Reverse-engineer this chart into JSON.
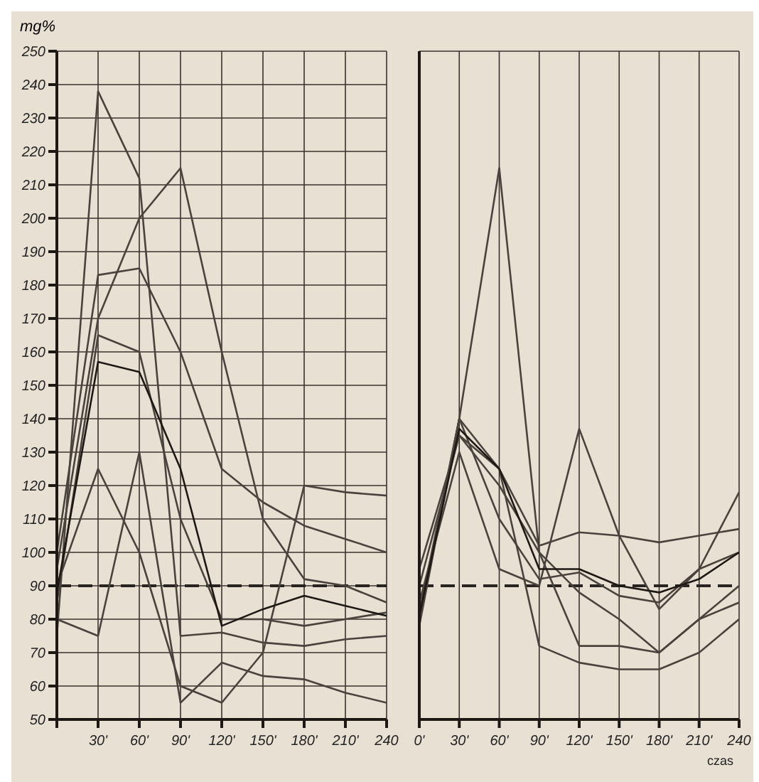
{
  "chart_data": [
    {
      "type": "line",
      "ylabel": "mg%",
      "x": [
        0,
        30,
        60,
        90,
        120,
        150,
        180,
        210,
        240
      ],
      "xlim": [
        0,
        240
      ],
      "xticks": [
        {
          "value": 0,
          "label": null
        },
        {
          "value": 30,
          "label": "30'"
        },
        {
          "value": 60,
          "label": "60'"
        },
        {
          "value": 90,
          "label": "90'"
        },
        {
          "value": 120,
          "label": "120'"
        },
        {
          "value": 150,
          "label": "150'"
        },
        {
          "value": 180,
          "label": "180'"
        },
        {
          "value": 210,
          "label": "210'"
        },
        {
          "value": 240,
          "label": "240"
        }
      ],
      "ylim": [
        50,
        250
      ],
      "yticks": [
        50,
        60,
        70,
        80,
        90,
        100,
        110,
        120,
        130,
        140,
        150,
        160,
        170,
        180,
        190,
        200,
        210,
        220,
        230,
        240,
        250
      ],
      "grid": true,
      "marker": "none",
      "ref_lines": [
        {
          "axis": "y",
          "value": 90,
          "color": "#2a2420",
          "line_style": "dashed"
        }
      ],
      "series": [
        {
          "color": "#4a423c",
          "values": [
            75,
            238,
            212,
            75,
            76,
            73,
            72,
            74,
            75
          ]
        },
        {
          "color": "#4a423c",
          "values": [
            95,
            170,
            200,
            215,
            160,
            110,
            92,
            90,
            85
          ]
        },
        {
          "color": "#4a423c",
          "values": [
            100,
            183,
            185,
            160,
            125,
            115,
            108,
            104,
            100
          ]
        },
        {
          "color": "#4a423c",
          "values": [
            80,
            75,
            130,
            55,
            67,
            63,
            62,
            58,
            55
          ]
        },
        {
          "color": "#4a423c",
          "values": [
            90,
            125,
            100,
            60,
            55,
            70,
            120,
            118,
            117
          ]
        },
        {
          "color": "#4a423c",
          "values": [
            85,
            165,
            160,
            110,
            80,
            80,
            78,
            80,
            82
          ]
        },
        {
          "color": "#1e1814",
          "values": [
            88,
            157,
            154,
            125,
            78,
            83,
            87,
            84,
            81
          ]
        }
      ]
    },
    {
      "type": "line",
      "xlabel": "czas",
      "x": [
        0,
        30,
        60,
        90,
        120,
        150,
        180,
        210,
        240
      ],
      "xlim": [
        0,
        240
      ],
      "xticks": [
        {
          "value": 0,
          "label": "0'"
        },
        {
          "value": 30,
          "label": "30'"
        },
        {
          "value": 60,
          "label": "60'"
        },
        {
          "value": 90,
          "label": "90'"
        },
        {
          "value": 120,
          "label": "120'"
        },
        {
          "value": 150,
          "label": "150'"
        },
        {
          "value": 180,
          "label": "180'"
        },
        {
          "value": 210,
          "label": "210'"
        },
        {
          "value": 240,
          "label": "240"
        }
      ],
      "ylim": [
        50,
        250
      ],
      "tick_labels": "x",
      "grid": true,
      "marker": "none",
      "ref_lines": [
        {
          "axis": "y",
          "value": 90,
          "color": "#2a2420",
          "line_style": "dashed"
        }
      ],
      "series": [
        {
          "color": "#4a423c",
          "values": [
            80,
            140,
            215,
            100,
            72,
            72,
            70,
            80,
            85
          ]
        },
        {
          "color": "#4a423c",
          "values": [
            85,
            130,
            95,
            90,
            137,
            105,
            83,
            95,
            118
          ]
        },
        {
          "color": "#4a423c",
          "values": [
            95,
            135,
            125,
            102,
            106,
            105,
            103,
            105,
            107
          ]
        },
        {
          "color": "#4a423c",
          "values": [
            78,
            140,
            125,
            72,
            67,
            65,
            65,
            70,
            80
          ]
        },
        {
          "color": "#4a423c",
          "values": [
            90,
            135,
            120,
            100,
            88,
            80,
            70,
            80,
            90
          ]
        },
        {
          "color": "#4a423c",
          "values": [
            82,
            140,
            110,
            92,
            94,
            87,
            85,
            95,
            100
          ]
        },
        {
          "color": "#1e1814",
          "values": [
            81,
            137,
            125,
            95,
            95,
            90,
            88,
            92,
            100
          ]
        }
      ]
    }
  ]
}
